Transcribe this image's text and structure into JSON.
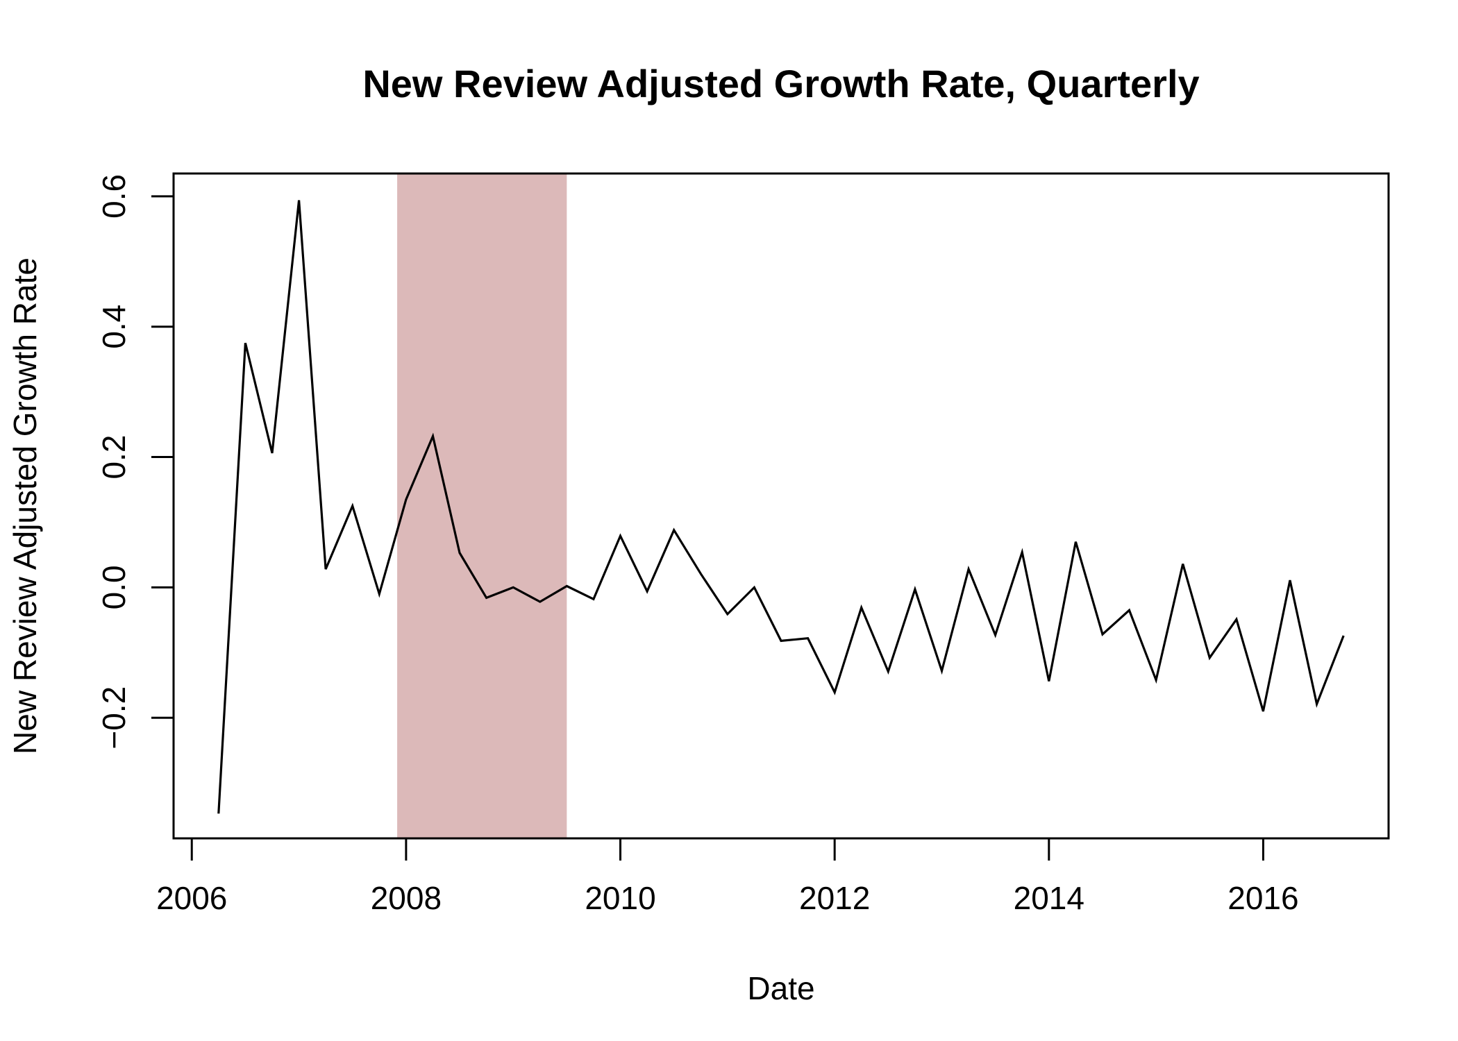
{
  "chart_data": {
    "type": "line",
    "title": "New Review Adjusted Growth Rate, Quarterly",
    "xlabel": "Date",
    "ylabel": "New Review Adjusted Growth Rate",
    "xlim": [
      2005.83,
      2017.17
    ],
    "ylim": [
      -0.385,
      0.635
    ],
    "x_ticks": [
      2006,
      2008,
      2010,
      2012,
      2014,
      2016
    ],
    "x_tick_labels": [
      "2006",
      "2008",
      "2010",
      "2012",
      "2014",
      "2016"
    ],
    "y_ticks": [
      -0.2,
      0.0,
      0.2,
      0.4,
      0.6
    ],
    "y_tick_labels": [
      "−0.2",
      "0.0",
      "0.2",
      "0.4",
      "0.6"
    ],
    "grid": false,
    "shaded_region": {
      "x_start": 2007.917,
      "x_end": 2009.5,
      "color": "#dcb9b9"
    },
    "line_color": "#000000",
    "series": [
      {
        "x": [
          2006.25,
          2006.5,
          2006.75,
          2007.0,
          2007.25,
          2007.5,
          2007.75,
          2008.0,
          2008.25,
          2008.5,
          2008.75,
          2009.0,
          2009.25,
          2009.5,
          2009.75,
          2010.0,
          2010.25,
          2010.5,
          2010.75,
          2011.0,
          2011.25,
          2011.5,
          2011.75,
          2012.0,
          2012.25,
          2012.5,
          2012.75,
          2013.0,
          2013.25,
          2013.5,
          2013.75,
          2014.0,
          2014.25,
          2014.5,
          2014.75,
          2015.0,
          2015.25,
          2015.5,
          2015.75,
          2016.0,
          2016.25,
          2016.5,
          2016.75
        ],
        "values": [
          -0.347,
          0.375,
          0.206,
          0.594,
          0.028,
          0.125,
          -0.01,
          0.135,
          0.232,
          0.053,
          -0.016,
          0.0,
          -0.022,
          0.002,
          -0.018,
          0.079,
          -0.006,
          0.088,
          0.021,
          -0.041,
          0.0,
          -0.082,
          -0.078,
          -0.161,
          -0.031,
          -0.129,
          -0.003,
          -0.128,
          0.028,
          -0.073,
          0.054,
          -0.144,
          0.07,
          -0.072,
          -0.035,
          -0.142,
          0.036,
          -0.108,
          -0.049,
          -0.19,
          0.011,
          -0.179,
          -0.074
        ]
      }
    ]
  }
}
